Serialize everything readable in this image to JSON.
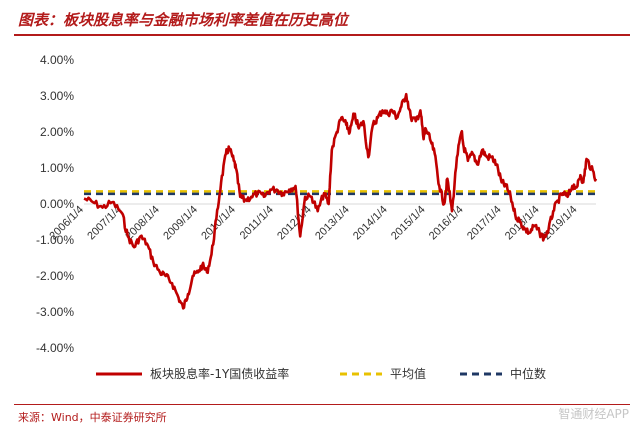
{
  "header": {
    "title": "图表：板块股息率与金融市场利率差值在历史高位"
  },
  "footer": {
    "source": "来源：Wind，中泰证券研究所",
    "watermark": "智通财经APP"
  },
  "colors": {
    "accent": "#b31b1b",
    "series_main": "#c00000",
    "mean_line": "#e8c100",
    "median_line": "#1f3864"
  },
  "chart_data": {
    "type": "line",
    "title": "",
    "xlabel": "",
    "ylabel": "",
    "ylim": [
      -4.0,
      4.0
    ],
    "y_ticks": [
      "4.00%",
      "3.00%",
      "2.00%",
      "1.00%",
      "0.00%",
      "-1.00%",
      "-2.00%",
      "-3.00%",
      "-4.00%"
    ],
    "x_range": [
      "2006/1/4",
      "2019/7/1"
    ],
    "x_ticks": [
      "2006/1/4",
      "2007/1/4",
      "2008/1/4",
      "2009/1/4",
      "2010/1/4",
      "2011/1/4",
      "2012/1/4",
      "2013/1/4",
      "2014/1/4",
      "2015/1/4",
      "2016/1/4",
      "2017/1/4",
      "2018/1/4",
      "2019/1/4"
    ],
    "grid": false,
    "legend_position": "bottom",
    "series": [
      {
        "name": "板块股息率-1Y国债收益率",
        "style": "solid",
        "points": [
          [
            "2006-01-04",
            0.15
          ],
          [
            "2006-04-01",
            0.05
          ],
          [
            "2006-07-01",
            -0.1
          ],
          [
            "2006-10-01",
            0.05
          ],
          [
            "2007-01-04",
            -0.25
          ],
          [
            "2007-03-01",
            -0.9
          ],
          [
            "2007-05-01",
            -1.2
          ],
          [
            "2007-07-01",
            -0.9
          ],
          [
            "2007-09-01",
            -1.1
          ],
          [
            "2007-11-01",
            -1.6
          ],
          [
            "2008-01-04",
            -1.9
          ],
          [
            "2008-03-01",
            -2.0
          ],
          [
            "2008-05-01",
            -2.2
          ],
          [
            "2008-07-01",
            -2.6
          ],
          [
            "2008-08-15",
            -2.9
          ],
          [
            "2008-10-01",
            -2.5
          ],
          [
            "2008-11-15",
            -2.0
          ],
          [
            "2009-01-04",
            -1.9
          ],
          [
            "2009-02-15",
            -1.7
          ],
          [
            "2009-04-01",
            -1.9
          ],
          [
            "2009-05-15",
            -1.4
          ],
          [
            "2009-07-01",
            -0.4
          ],
          [
            "2009-08-15",
            0.6
          ],
          [
            "2009-10-01",
            1.4
          ],
          [
            "2009-11-01",
            1.55
          ],
          [
            "2009-12-15",
            1.2
          ],
          [
            "2010-01-04",
            1.0
          ],
          [
            "2010-02-15",
            0.2
          ],
          [
            "2010-04-01",
            0.1
          ],
          [
            "2010-06-01",
            0.2
          ],
          [
            "2010-08-01",
            0.3
          ],
          [
            "2010-10-01",
            0.2
          ],
          [
            "2010-12-01",
            0.4
          ],
          [
            "2011-02-01",
            0.4
          ],
          [
            "2011-04-01",
            0.3
          ],
          [
            "2011-06-01",
            0.4
          ],
          [
            "2011-08-01",
            0.5
          ],
          [
            "2011-09-15",
            -0.9
          ],
          [
            "2011-11-01",
            0.2
          ],
          [
            "2012-01-04",
            0.2
          ],
          [
            "2012-03-01",
            -0.2
          ],
          [
            "2012-05-01",
            0.3
          ],
          [
            "2012-06-15",
            0.0
          ],
          [
            "2012-07-15",
            1.5
          ],
          [
            "2012-09-01",
            2.0
          ],
          [
            "2012-10-15",
            2.4
          ],
          [
            "2012-12-01",
            2.2
          ],
          [
            "2013-01-04",
            2.0
          ],
          [
            "2013-02-15",
            2.5
          ],
          [
            "2013-04-01",
            2.1
          ],
          [
            "2013-05-15",
            2.3
          ],
          [
            "2013-07-01",
            1.3
          ],
          [
            "2013-08-15",
            2.2
          ],
          [
            "2013-10-01",
            2.4
          ],
          [
            "2013-11-15",
            2.6
          ],
          [
            "2014-01-04",
            2.5
          ],
          [
            "2014-02-15",
            2.6
          ],
          [
            "2014-04-01",
            2.4
          ],
          [
            "2014-05-15",
            2.7
          ],
          [
            "2014-07-01",
            3.05
          ],
          [
            "2014-08-15",
            2.4
          ],
          [
            "2014-10-01",
            2.3
          ],
          [
            "2014-11-15",
            2.6
          ],
          [
            "2014-12-15",
            1.8
          ],
          [
            "2015-01-04",
            2.1
          ],
          [
            "2015-02-15",
            1.8
          ],
          [
            "2015-04-01",
            1.4
          ],
          [
            "2015-05-15",
            0.5
          ],
          [
            "2015-07-01",
            0.0
          ],
          [
            "2015-08-01",
            0.7
          ],
          [
            "2015-09-15",
            -0.2
          ],
          [
            "2015-11-01",
            1.3
          ],
          [
            "2015-12-15",
            2.0
          ],
          [
            "2016-01-04",
            1.6
          ],
          [
            "2016-02-15",
            1.2
          ],
          [
            "2016-04-01",
            1.4
          ],
          [
            "2016-05-15",
            1.1
          ],
          [
            "2016-07-01",
            1.5
          ],
          [
            "2016-08-15",
            1.3
          ],
          [
            "2016-10-01",
            1.3
          ],
          [
            "2016-11-15",
            1.1
          ],
          [
            "2017-01-04",
            0.6
          ],
          [
            "2017-02-15",
            0.5
          ],
          [
            "2017-04-01",
            0.2
          ],
          [
            "2017-05-15",
            -0.3
          ],
          [
            "2017-07-01",
            -0.5
          ],
          [
            "2017-08-15",
            -0.7
          ],
          [
            "2017-10-01",
            -0.8
          ],
          [
            "2017-11-15",
            -0.6
          ],
          [
            "2018-01-04",
            -0.8
          ],
          [
            "2018-02-15",
            -0.95
          ],
          [
            "2018-04-01",
            -0.7
          ],
          [
            "2018-05-15",
            -0.2
          ],
          [
            "2018-07-01",
            0.1
          ],
          [
            "2018-08-15",
            0.3
          ],
          [
            "2018-10-01",
            0.2
          ],
          [
            "2018-11-15",
            0.5
          ],
          [
            "2019-01-04",
            0.5
          ],
          [
            "2019-02-01",
            0.8
          ],
          [
            "2019-03-01",
            0.6
          ],
          [
            "2019-04-01",
            1.25
          ],
          [
            "2019-05-15",
            1.0
          ],
          [
            "2019-07-01",
            0.7
          ]
        ]
      },
      {
        "name": "平均值",
        "style": "dashed",
        "constant": 0.35
      },
      {
        "name": "中位数",
        "style": "dashed",
        "constant": 0.28
      }
    ]
  }
}
